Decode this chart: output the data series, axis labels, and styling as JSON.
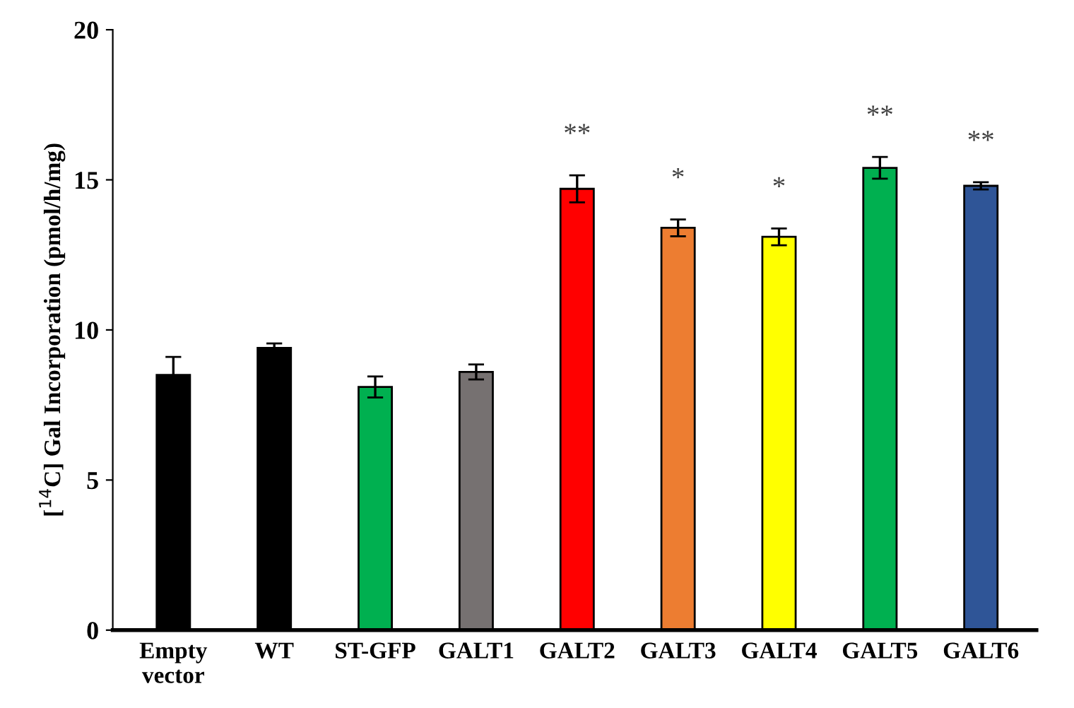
{
  "chart_data": {
    "type": "bar",
    "ylabel": "[$^{14}$C] Gal Incorporation (pmol/h/mg)",
    "categories": [
      "Empty\nvector",
      "WT",
      "ST-GFP",
      "GALT1",
      "GALT2",
      "GALT3",
      "GALT4",
      "GALT5",
      "GALT6"
    ],
    "values": [
      8.5,
      9.4,
      8.1,
      8.6,
      14.7,
      13.4,
      13.1,
      15.4,
      14.8
    ],
    "errors": [
      0.6,
      0.15,
      0.35,
      0.25,
      0.45,
      0.28,
      0.28,
      0.36,
      0.12
    ],
    "colors": [
      "#000000",
      "#000000",
      "#00b050",
      "#767171",
      "#ff0000",
      "#ed7d31",
      "#ffff00",
      "#00b050",
      "#2f5597"
    ],
    "ylim": [
      0,
      20
    ],
    "yticks": [
      0,
      5,
      10,
      15,
      20
    ],
    "grid": false,
    "value_labels": [
      null,
      null,
      null,
      null,
      "**",
      "*",
      "*",
      "**",
      "**"
    ]
  }
}
